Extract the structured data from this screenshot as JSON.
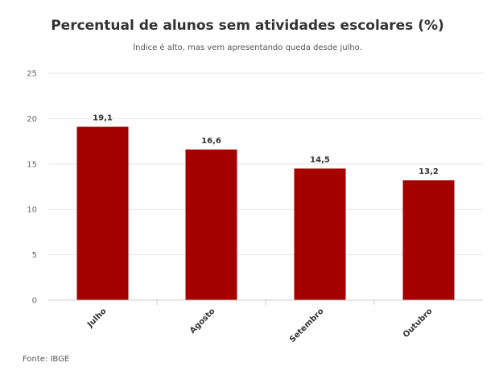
{
  "title": "Percentual de alunos sem atividades escolares (%)",
  "subtitle": "Índice é alto, mas vem apresentando queda desde julho.",
  "source": "Fonte: IBGE",
  "colors": {
    "bar": "#a50000",
    "grid": "#e6e6e6",
    "axis": "#cccccc"
  },
  "chart_data": {
    "type": "bar",
    "title": "Percentual de alunos sem atividades escolares (%)",
    "subtitle": "Índice é alto, mas vem apresentando queda desde julho.",
    "categories": [
      "Julho",
      "Agosto",
      "Setembro",
      "Outubro"
    ],
    "values": [
      19.1,
      16.6,
      14.5,
      13.2
    ],
    "value_labels": [
      "19,1",
      "16,6",
      "14,5",
      "13,2"
    ],
    "y_ticks": [
      "0",
      "5",
      "10",
      "15",
      "20",
      "25"
    ],
    "ylim": [
      0,
      25
    ],
    "grid": true,
    "legend": "none",
    "xlabel": "",
    "ylabel": ""
  }
}
